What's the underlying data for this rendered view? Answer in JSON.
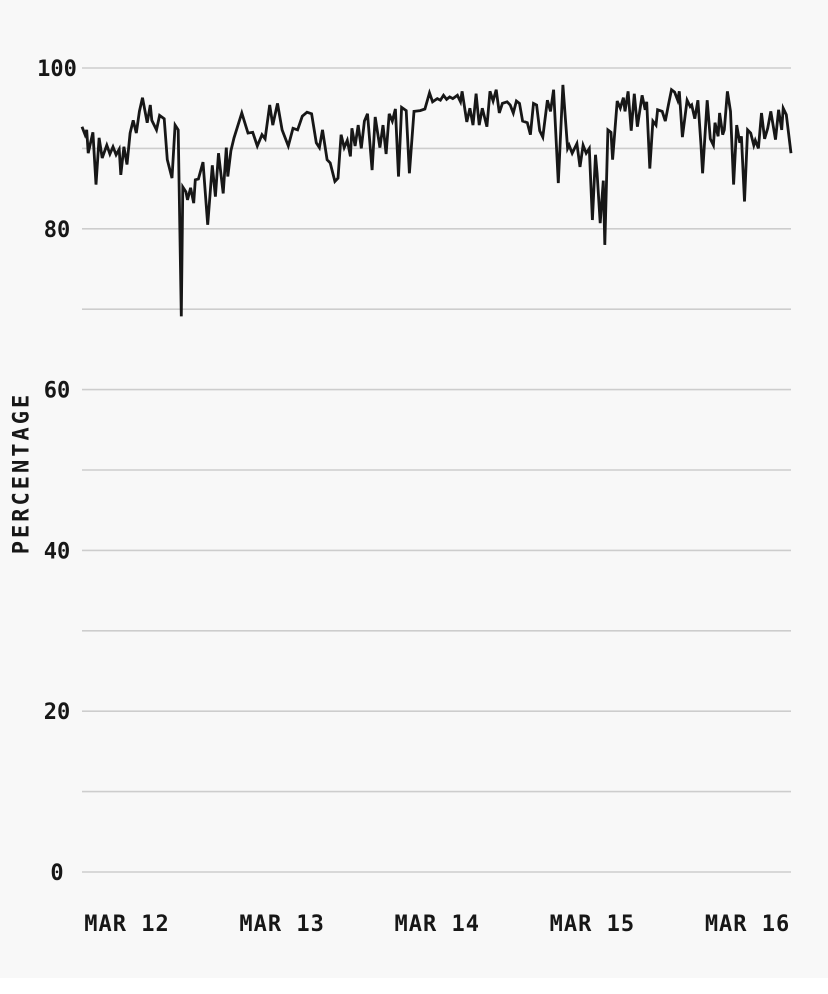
{
  "chart_data": {
    "type": "line",
    "title": "",
    "xlabel": "",
    "ylabel": "PERCENTAGE",
    "ylim": [
      0,
      100
    ],
    "y_ticks": [
      0,
      20,
      40,
      60,
      80,
      100
    ],
    "y_gridline_step": 10,
    "grid": true,
    "legend_position": "none",
    "x_ticks": [
      {
        "day": 0,
        "label": "MAR 12"
      },
      {
        "day": 1,
        "label": "MAR 13"
      },
      {
        "day": 2,
        "label": "MAR 14"
      },
      {
        "day": 3,
        "label": "MAR 15"
      },
      {
        "day": 4,
        "label": "MAR 16"
      }
    ],
    "xlim_days": [
      -0.29,
      4.28
    ],
    "colors": {
      "background": "#f8f8f8",
      "bottom_strip": "#ffffff",
      "gridline": "#cdcdcd",
      "line": "#171717",
      "text": "#171717"
    },
    "series": [
      {
        "name": "percentage",
        "points": [
          [
            -0.29,
            92.7
          ],
          [
            -0.27,
            91.7
          ],
          [
            -0.26,
            92.3
          ],
          [
            -0.25,
            89.4
          ],
          [
            -0.22,
            92.0
          ],
          [
            -0.2,
            85.5
          ],
          [
            -0.18,
            91.3
          ],
          [
            -0.16,
            88.8
          ],
          [
            -0.13,
            90.4
          ],
          [
            -0.11,
            89.3
          ],
          [
            -0.09,
            90.2
          ],
          [
            -0.07,
            89.2
          ],
          [
            -0.05,
            89.9
          ],
          [
            -0.04,
            86.7
          ],
          [
            -0.02,
            90.2
          ],
          [
            0.0,
            88.0
          ],
          [
            0.02,
            91.9
          ],
          [
            0.04,
            93.5
          ],
          [
            0.06,
            91.9
          ],
          [
            0.08,
            94.6
          ],
          [
            0.1,
            96.3
          ],
          [
            0.13,
            93.2
          ],
          [
            0.15,
            95.4
          ],
          [
            0.16,
            93.5
          ],
          [
            0.19,
            92.3
          ],
          [
            0.21,
            94.1
          ],
          [
            0.24,
            93.7
          ],
          [
            0.26,
            88.6
          ],
          [
            0.29,
            86.3
          ],
          [
            0.31,
            92.9
          ],
          [
            0.33,
            92.3
          ],
          [
            0.35,
            69.1
          ],
          [
            0.36,
            85.2
          ],
          [
            0.38,
            84.6
          ],
          [
            0.39,
            83.6
          ],
          [
            0.41,
            85.1
          ],
          [
            0.43,
            83.2
          ],
          [
            0.44,
            86.1
          ],
          [
            0.46,
            86.2
          ],
          [
            0.49,
            88.3
          ],
          [
            0.52,
            80.5
          ],
          [
            0.55,
            87.9
          ],
          [
            0.57,
            84.0
          ],
          [
            0.59,
            89.4
          ],
          [
            0.62,
            84.4
          ],
          [
            0.64,
            90.1
          ],
          [
            0.65,
            86.5
          ],
          [
            0.67,
            89.7
          ],
          [
            0.69,
            91.3
          ],
          [
            0.74,
            94.4
          ],
          [
            0.78,
            91.9
          ],
          [
            0.81,
            92.0
          ],
          [
            0.84,
            90.3
          ],
          [
            0.87,
            91.7
          ],
          [
            0.89,
            91.2
          ],
          [
            0.92,
            95.4
          ],
          [
            0.94,
            92.9
          ],
          [
            0.97,
            95.6
          ],
          [
            1.0,
            92.3
          ],
          [
            1.04,
            90.3
          ],
          [
            1.07,
            92.5
          ],
          [
            1.1,
            92.3
          ],
          [
            1.13,
            94.0
          ],
          [
            1.16,
            94.5
          ],
          [
            1.19,
            94.3
          ],
          [
            1.22,
            90.7
          ],
          [
            1.24,
            90.1
          ],
          [
            1.26,
            92.3
          ],
          [
            1.29,
            88.6
          ],
          [
            1.31,
            88.2
          ],
          [
            1.34,
            85.9
          ],
          [
            1.36,
            86.3
          ],
          [
            1.38,
            91.7
          ],
          [
            1.4,
            90.1
          ],
          [
            1.42,
            91.0
          ],
          [
            1.44,
            89.0
          ],
          [
            1.45,
            92.5
          ],
          [
            1.47,
            90.3
          ],
          [
            1.49,
            92.9
          ],
          [
            1.51,
            90.0
          ],
          [
            1.53,
            93.4
          ],
          [
            1.55,
            94.3
          ],
          [
            1.58,
            87.3
          ],
          [
            1.6,
            93.9
          ],
          [
            1.63,
            90.1
          ],
          [
            1.65,
            92.9
          ],
          [
            1.67,
            89.3
          ],
          [
            1.69,
            94.3
          ],
          [
            1.71,
            93.4
          ],
          [
            1.73,
            94.9
          ],
          [
            1.75,
            86.5
          ],
          [
            1.77,
            95.1
          ],
          [
            1.8,
            94.7
          ],
          [
            1.82,
            86.9
          ],
          [
            1.85,
            94.6
          ],
          [
            1.89,
            94.7
          ],
          [
            1.92,
            94.9
          ],
          [
            1.95,
            96.9
          ],
          [
            1.97,
            95.8
          ],
          [
            2.0,
            96.2
          ],
          [
            2.02,
            96.0
          ],
          [
            2.04,
            96.6
          ],
          [
            2.06,
            96.1
          ],
          [
            2.08,
            96.4
          ],
          [
            2.1,
            96.2
          ],
          [
            2.13,
            96.6
          ],
          [
            2.15,
            95.8
          ],
          [
            2.16,
            97.1
          ],
          [
            2.19,
            93.3
          ],
          [
            2.21,
            95.0
          ],
          [
            2.23,
            92.9
          ],
          [
            2.25,
            96.8
          ],
          [
            2.27,
            92.9
          ],
          [
            2.29,
            95.0
          ],
          [
            2.32,
            92.7
          ],
          [
            2.34,
            97.1
          ],
          [
            2.36,
            95.9
          ],
          [
            2.38,
            97.3
          ],
          [
            2.4,
            94.4
          ],
          [
            2.42,
            95.6
          ],
          [
            2.45,
            95.8
          ],
          [
            2.47,
            95.4
          ],
          [
            2.49,
            94.4
          ],
          [
            2.51,
            95.9
          ],
          [
            2.53,
            95.6
          ],
          [
            2.55,
            93.4
          ],
          [
            2.58,
            93.2
          ],
          [
            2.6,
            91.7
          ],
          [
            2.62,
            95.6
          ],
          [
            2.64,
            95.4
          ],
          [
            2.66,
            92.2
          ],
          [
            2.68,
            91.4
          ],
          [
            2.71,
            96.0
          ],
          [
            2.73,
            94.6
          ],
          [
            2.75,
            97.3
          ],
          [
            2.78,
            85.7
          ],
          [
            2.81,
            97.9
          ],
          [
            2.84,
            90.0
          ],
          [
            2.85,
            90.4
          ],
          [
            2.87,
            89.4
          ],
          [
            2.9,
            90.6
          ],
          [
            2.92,
            87.7
          ],
          [
            2.94,
            90.4
          ],
          [
            2.96,
            89.4
          ],
          [
            2.98,
            90.0
          ],
          [
            3.0,
            81.1
          ],
          [
            3.02,
            89.2
          ],
          [
            3.03,
            86.9
          ],
          [
            3.05,
            80.7
          ],
          [
            3.07,
            86.0
          ],
          [
            3.08,
            78.0
          ],
          [
            3.1,
            92.3
          ],
          [
            3.12,
            92.0
          ],
          [
            3.13,
            88.6
          ],
          [
            3.16,
            95.9
          ],
          [
            3.18,
            95.0
          ],
          [
            3.2,
            96.3
          ],
          [
            3.21,
            94.6
          ],
          [
            3.23,
            97.1
          ],
          [
            3.25,
            92.2
          ],
          [
            3.27,
            96.8
          ],
          [
            3.29,
            92.7
          ],
          [
            3.32,
            96.6
          ],
          [
            3.34,
            94.8
          ],
          [
            3.35,
            95.8
          ],
          [
            3.37,
            87.5
          ],
          [
            3.39,
            93.4
          ],
          [
            3.41,
            92.9
          ],
          [
            3.42,
            94.8
          ],
          [
            3.45,
            94.6
          ],
          [
            3.47,
            93.4
          ],
          [
            3.49,
            95.4
          ],
          [
            3.51,
            97.3
          ],
          [
            3.53,
            97.0
          ],
          [
            3.55,
            96.0
          ],
          [
            3.56,
            97.1
          ],
          [
            3.58,
            91.4
          ],
          [
            3.61,
            96.0
          ],
          [
            3.63,
            95.2
          ],
          [
            3.64,
            95.4
          ],
          [
            3.66,
            93.7
          ],
          [
            3.68,
            96.0
          ],
          [
            3.7,
            90.4
          ],
          [
            3.71,
            86.9
          ],
          [
            3.74,
            96.0
          ],
          [
            3.76,
            91.2
          ],
          [
            3.78,
            90.4
          ],
          [
            3.79,
            93.2
          ],
          [
            3.81,
            91.5
          ],
          [
            3.82,
            94.4
          ],
          [
            3.84,
            91.7
          ],
          [
            3.85,
            92.3
          ],
          [
            3.87,
            97.1
          ],
          [
            3.89,
            94.6
          ],
          [
            3.91,
            85.5
          ],
          [
            3.93,
            92.9
          ],
          [
            3.95,
            90.7
          ],
          [
            3.96,
            91.5
          ],
          [
            3.98,
            83.4
          ],
          [
            4.0,
            92.3
          ],
          [
            4.02,
            91.9
          ],
          [
            4.04,
            90.4
          ],
          [
            4.05,
            91.0
          ],
          [
            4.07,
            90.0
          ],
          [
            4.09,
            94.4
          ],
          [
            4.11,
            91.2
          ],
          [
            4.13,
            92.5
          ],
          [
            4.15,
            94.6
          ],
          [
            4.18,
            91.1
          ],
          [
            4.2,
            94.8
          ],
          [
            4.22,
            92.3
          ],
          [
            4.23,
            95.0
          ],
          [
            4.25,
            94.2
          ],
          [
            4.28,
            89.4
          ]
        ]
      }
    ]
  }
}
